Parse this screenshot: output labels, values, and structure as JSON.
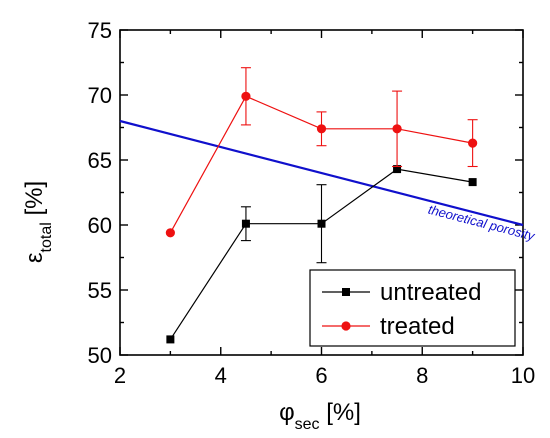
{
  "chart_data": {
    "type": "line",
    "xlabel": {
      "symbol": "φ",
      "sub": "sec",
      "unit": " [%]"
    },
    "ylabel": {
      "symbol": "ε",
      "sub": "total",
      "unit": " [%]"
    },
    "xlim": [
      2,
      10
    ],
    "ylim": [
      50,
      75
    ],
    "xticks": [
      2,
      4,
      6,
      8,
      10
    ],
    "yticks": [
      50,
      55,
      60,
      65,
      70,
      75
    ],
    "grid": false,
    "legend_position": "bottom-right",
    "series": [
      {
        "name": "untreated",
        "color": "#000000",
        "marker": "square",
        "x": [
          3,
          4.5,
          6,
          7.5,
          9
        ],
        "y": [
          51.2,
          60.1,
          60.1,
          64.3,
          63.3
        ],
        "err": [
          0,
          1.3,
          3.0,
          0,
          0
        ]
      },
      {
        "name": "treated",
        "color": "#ee1111",
        "marker": "circle",
        "x": [
          3,
          4.5,
          6,
          7.5,
          9
        ],
        "y": [
          59.4,
          69.9,
          67.4,
          67.4,
          66.3
        ],
        "err": [
          0,
          2.2,
          1.3,
          2.9,
          1.8
        ]
      }
    ],
    "reference_line": {
      "label": "theoretical porosity",
      "color": "#1010cc",
      "x": [
        2,
        10
      ],
      "y": [
        68.0,
        60.0
      ]
    }
  }
}
